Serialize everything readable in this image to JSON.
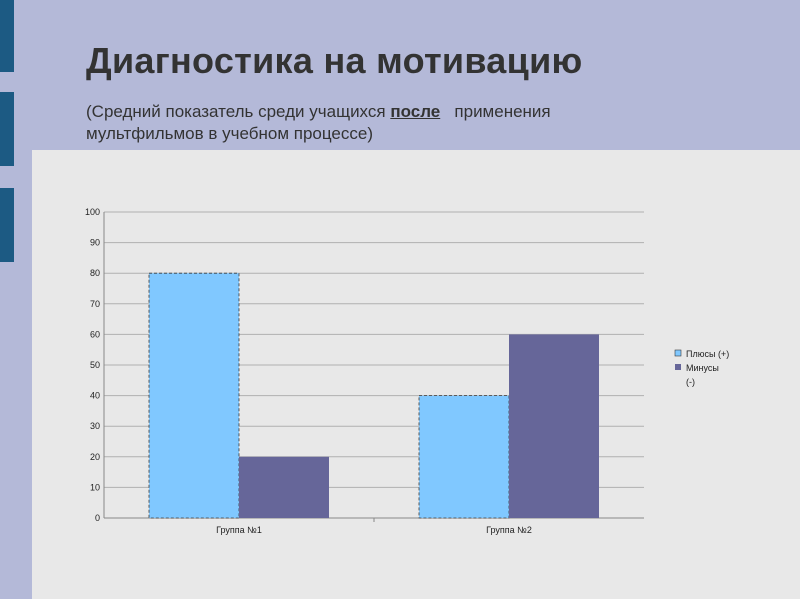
{
  "slide": {
    "title": "Диагностика на мотивацию",
    "subtitle_before": "(Средний показатель среди учащихся ",
    "subtitle_emphasis": "после",
    "subtitle_after": "   применения\nмультфильмов в учебном процессе)"
  },
  "colors": {
    "background": "#b4b9d8",
    "accent": "#1c5a83",
    "chart_panel": "#e8e8e8",
    "series_plus": "#80c8ff",
    "series_minus": "#666699"
  },
  "chart_data": {
    "type": "bar",
    "categories": [
      "Группа №1",
      "Группа №2"
    ],
    "series": [
      {
        "name": "Плюсы (+)",
        "values": [
          80,
          40
        ]
      },
      {
        "name": "Минусы\n(-)",
        "values": [
          20,
          60
        ]
      }
    ],
    "ylim": [
      0,
      100
    ],
    "yticks": [
      0,
      10,
      20,
      30,
      40,
      50,
      60,
      70,
      80,
      90,
      100
    ],
    "grid": true,
    "legend": "right",
    "title": "",
    "xlabel": "",
    "ylabel": ""
  }
}
